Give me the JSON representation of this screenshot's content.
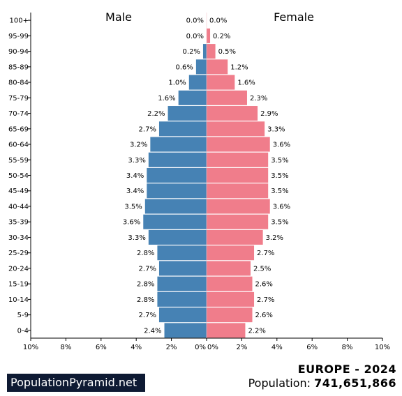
{
  "brand": "PopulationPyramid.net",
  "region_title": "EUROPE - 2024",
  "population_label": "Population:",
  "population_value": "741,651,866",
  "chart_data": {
    "type": "bar",
    "orientation": "horizontal-pyramid",
    "categories": [
      "0-4",
      "5-9",
      "10-14",
      "15-19",
      "20-24",
      "25-29",
      "30-34",
      "35-39",
      "40-44",
      "45-49",
      "50-54",
      "55-59",
      "60-64",
      "65-69",
      "70-74",
      "75-79",
      "80-84",
      "85-89",
      "90-94",
      "95-99",
      "100+"
    ],
    "series": [
      {
        "name": "Male",
        "color": "#4682b4",
        "values": [
          2.4,
          2.7,
          2.8,
          2.8,
          2.7,
          2.8,
          3.3,
          3.6,
          3.5,
          3.4,
          3.4,
          3.3,
          3.2,
          2.7,
          2.2,
          1.6,
          1.0,
          0.6,
          0.2,
          0.0,
          0.0
        ]
      },
      {
        "name": "Female",
        "color": "#f07d8b",
        "values": [
          2.2,
          2.6,
          2.7,
          2.6,
          2.5,
          2.7,
          3.2,
          3.5,
          3.6,
          3.5,
          3.5,
          3.5,
          3.6,
          3.3,
          2.9,
          2.3,
          1.6,
          1.2,
          0.5,
          0.2,
          0.0
        ]
      }
    ],
    "value_labels": {
      "Male": [
        "2.4%",
        "2.7%",
        "2.8%",
        "2.8%",
        "2.7%",
        "2.8%",
        "3.3%",
        "3.6%",
        "3.5%",
        "3.4%",
        "3.4%",
        "3.3%",
        "3.2%",
        "2.7%",
        "2.2%",
        "1.6%",
        "1.0%",
        "0.6%",
        "0.2%",
        "0.0%",
        "0.0%"
      ],
      "Female": [
        "2.2%",
        "2.6%",
        "2.7%",
        "2.6%",
        "2.5%",
        "2.7%",
        "3.2%",
        "3.5%",
        "3.6%",
        "3.5%",
        "3.5%",
        "3.5%",
        "3.6%",
        "3.3%",
        "2.9%",
        "2.3%",
        "1.6%",
        "1.2%",
        "0.5%",
        "0.2%",
        "0.0%"
      ]
    },
    "xlim": [
      0,
      10
    ],
    "x_ticks": [
      0,
      2,
      4,
      6,
      8,
      10
    ],
    "x_tick_labels_left": [
      "0%",
      "2%",
      "4%",
      "6%",
      "8%",
      "10%"
    ],
    "x_tick_labels_right": [
      "0%",
      "2%",
      "4%",
      "6%",
      "8%",
      "10%"
    ],
    "grid": false,
    "legend": "none"
  }
}
